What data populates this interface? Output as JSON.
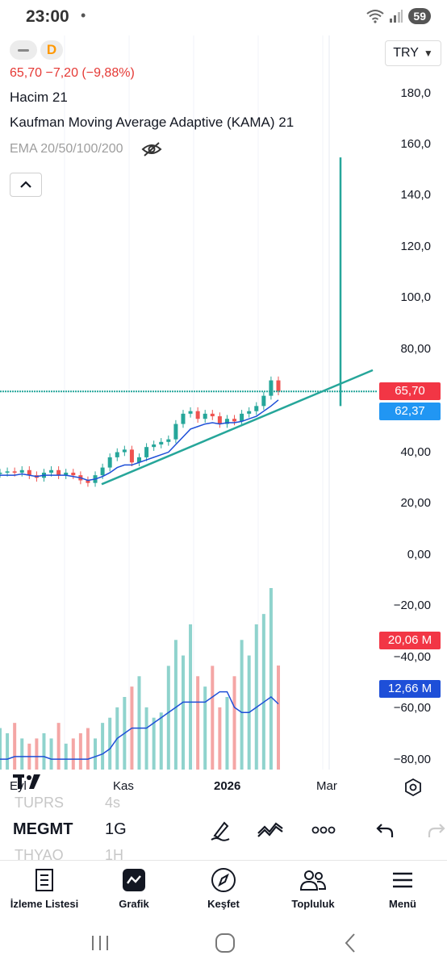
{
  "status_bar": {
    "time": "23:00",
    "dot": "•",
    "battery": "59",
    "icons": [
      "wifi-icon",
      "signal-icon",
      "battery-icon"
    ]
  },
  "chart_header": {
    "interval_badge": "D",
    "price_line": "65,70  −7,20 (−9,88%)",
    "volume_indicator": "Hacim 21",
    "kama_indicator": "Kaufman Moving Average Adaptive (KAMA) 21",
    "ema_indicator": "EMA 20/50/100/200"
  },
  "currency_selector": {
    "value": "TRY"
  },
  "price_axis": {
    "ticks": [
      "180,0",
      "160,0",
      "140,0",
      "120,0",
      "100,0",
      "80,00",
      "40,00",
      "20,00",
      "0,00",
      "−20,00",
      "−40,00",
      "−60,00",
      "−80,00"
    ],
    "last_price_badge": "65,70",
    "kama_badge": "62,37",
    "volume_badge": "20,06 M",
    "volume_ma_badge": "12,66 M"
  },
  "time_axis": {
    "labels": [
      "Eyl",
      "Kas",
      "2026",
      "Mar"
    ]
  },
  "colors": {
    "up": "#26a69a",
    "down": "#ef5350",
    "kama": "#1e4fd8",
    "trendline": "#26a69a",
    "last_price": "#f23645",
    "kama_badge": "#2196f3",
    "volume_ma_badge": "#1e4fd8"
  },
  "symbol_bar": {
    "prev_symbol": "TUPRS",
    "prev_tf": "4s",
    "symbol": "MEGMT",
    "timeframe": "1G",
    "next_symbol": "THYAO",
    "next_tf": "1H",
    "tools": [
      "draw-pencil-icon",
      "trend-icon",
      "more-icon",
      "undo-icon",
      "redo-icon"
    ]
  },
  "bottom_nav": {
    "items": [
      {
        "label": "İzleme Listesi",
        "icon": "watchlist-icon"
      },
      {
        "label": "Grafik",
        "icon": "chart-icon"
      },
      {
        "label": "Keşfet",
        "icon": "compass-icon"
      },
      {
        "label": "Topluluk",
        "icon": "community-icon"
      },
      {
        "label": "Menü",
        "icon": "menu-icon"
      }
    ]
  },
  "chart_data": {
    "type": "candlestick",
    "series": [
      {
        "values": [
          34,
          34.5,
          34,
          35,
          33,
          32,
          34,
          35,
          33,
          34,
          33,
          31,
          30,
          33,
          36,
          40,
          42,
          43,
          38,
          40,
          44,
          45,
          46,
          47,
          53,
          57,
          58,
          55,
          57,
          56,
          53,
          55,
          54,
          57,
          58,
          60,
          64,
          70,
          65.7
        ]
      },
      {
        "values": [
          33,
          33,
          33,
          33.5,
          33,
          32.5,
          33,
          33,
          33,
          33,
          32.5,
          32,
          31,
          31.5,
          32.5,
          34,
          36,
          37,
          37,
          38,
          39,
          40,
          41,
          42,
          45,
          48,
          51,
          52,
          53,
          53.5,
          53,
          53.5,
          53.5,
          54,
          55,
          56,
          58,
          60,
          62.37
        ]
      },
      {
        "values": [
          8,
          7,
          9,
          6,
          5,
          6,
          7,
          6,
          9,
          5,
          6,
          7,
          8,
          6,
          9,
          10,
          12,
          14,
          16,
          18,
          12,
          10,
          11,
          20,
          25,
          22,
          28,
          18,
          16,
          20,
          12,
          14,
          18,
          25,
          22,
          28,
          30,
          35,
          20.06
        ]
      },
      {
        "values": [
          2,
          2,
          2.5,
          2.5,
          2.5,
          2.5,
          2.5,
          2,
          2,
          2,
          2,
          2,
          2,
          2.5,
          3,
          4,
          6,
          7,
          8,
          8,
          8,
          9,
          10,
          11,
          12,
          13,
          13,
          13,
          13,
          14,
          15,
          15,
          12,
          11,
          11,
          12,
          13,
          14,
          12.66
        ]
      }
    ],
    "ylim": [
      -80,
      180
    ],
    "x_labels": [
      "Eyl",
      "Kas",
      "2026",
      "Mar"
    ],
    "horizontal_line": 65.7,
    "trendline": [
      [
        30,
        29.5
      ],
      [
        100,
        74
      ]
    ],
    "vertical_marker": {
      "from": 60,
      "to": 157
    }
  }
}
